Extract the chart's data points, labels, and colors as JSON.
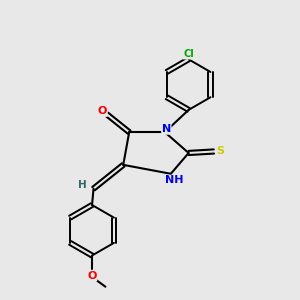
{
  "background_color": "#e8e8e8",
  "bond_color": "#000000",
  "atom_colors": {
    "N": "#0000ff",
    "O": "#ff0000",
    "S": "#cccc00",
    "Cl": "#00aa00",
    "H": "#336666",
    "C": "#000000"
  },
  "figsize": [
    3.0,
    3.0
  ],
  "dpi": 100
}
